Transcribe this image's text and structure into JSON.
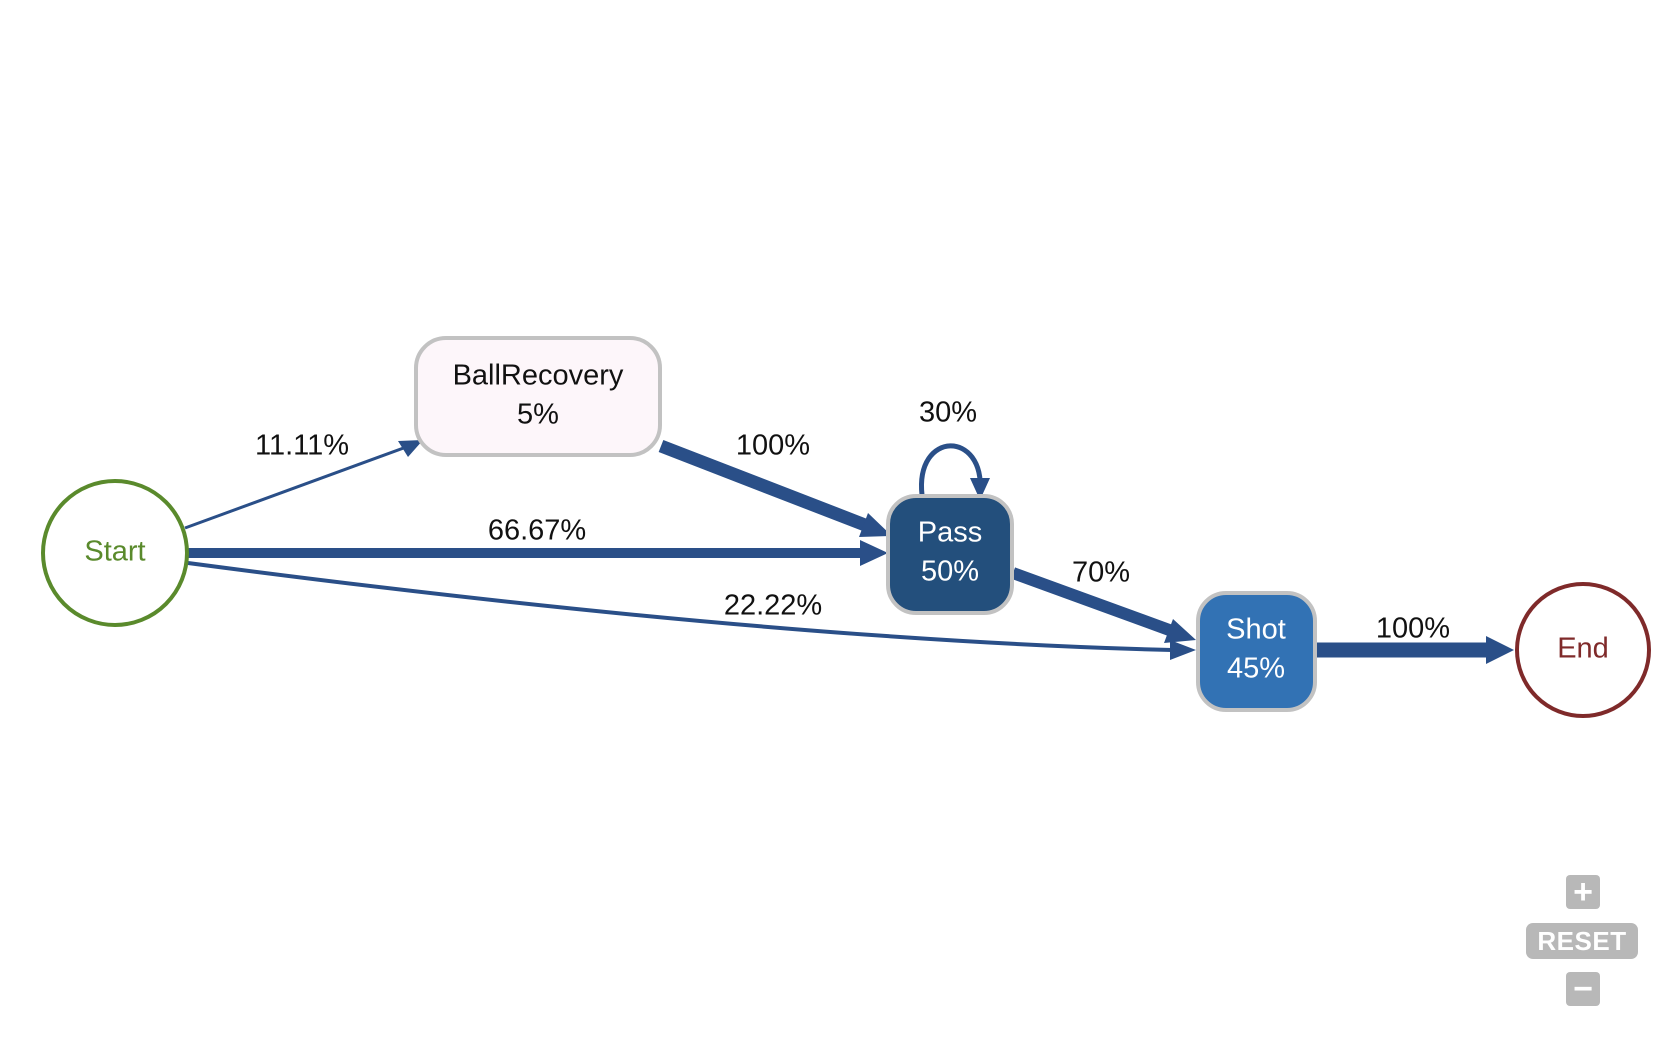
{
  "diagram": {
    "nodes": {
      "start": {
        "label": "Start"
      },
      "ballrecovery": {
        "label": "BallRecovery",
        "pct": "5%"
      },
      "pass": {
        "label": "Pass",
        "pct": "50%"
      },
      "shot": {
        "label": "Shot",
        "pct": "45%"
      },
      "end": {
        "label": "End"
      }
    },
    "edges": {
      "start_ballrecovery": "11.11%",
      "start_pass": "66.67%",
      "start_shot": "22.22%",
      "ballrecovery_pass": "100%",
      "pass_pass": "30%",
      "pass_shot": "70%",
      "shot_end": "100%"
    }
  },
  "colors": {
    "edge": "#2a4f88",
    "start_stroke": "#5a8a2c",
    "end_stroke": "#7f2a2a",
    "ballrecovery_fill": "#fdf6fa",
    "pass_fill": "#234f7c",
    "shot_fill": "#3272b4",
    "node_border": "#c2c2c2"
  },
  "controls": {
    "zoom_in_label": "+",
    "reset_label": "RESET",
    "zoom_out_label": "−"
  }
}
